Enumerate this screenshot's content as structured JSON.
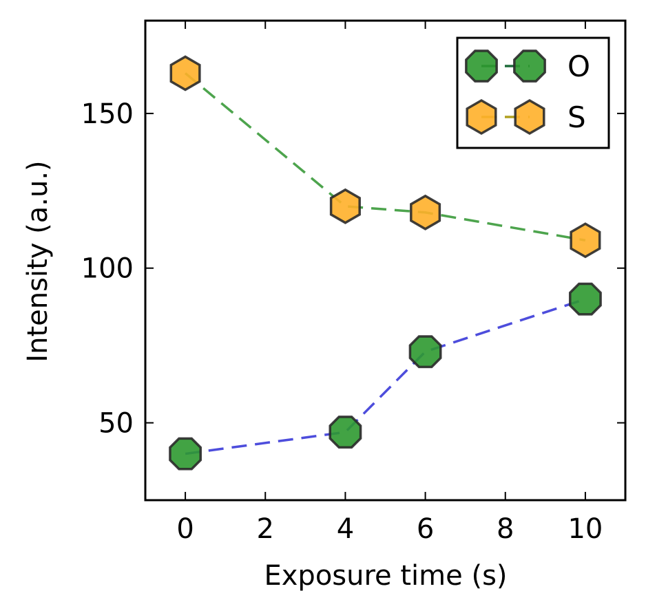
{
  "chart_data": {
    "type": "line",
    "title": "",
    "xlabel": "Exposure time (s)",
    "ylabel": "Intensity (a.u.)",
    "xlim": [
      -1,
      11
    ],
    "ylim": [
      25,
      180
    ],
    "x_ticks": [
      0,
      2,
      4,
      6,
      8,
      10
    ],
    "y_ticks": [
      50,
      100,
      150
    ],
    "x_tick_labels": [
      "0",
      "2",
      "4",
      "6",
      "8",
      "10"
    ],
    "y_tick_labels": [
      "50",
      "100",
      "150"
    ],
    "grid": false,
    "legend_position": "top-right",
    "series": [
      {
        "name": "O",
        "x": [
          0,
          4,
          6,
          10
        ],
        "y": [
          40,
          47,
          73,
          90
        ],
        "marker": "octagon",
        "marker_color": "#2e9930",
        "line_color": "#3a3ad8",
        "legend_line_color": "#1e6b3a",
        "line_style": "dashed"
      },
      {
        "name": "S",
        "x": [
          0,
          4,
          6,
          10
        ],
        "y": [
          163,
          120,
          118,
          109
        ],
        "marker": "hexagon",
        "marker_color": "#ffb02a",
        "line_color": "#3a9a3a",
        "legend_line_color": "#b0a020",
        "line_style": "dashed"
      }
    ]
  }
}
